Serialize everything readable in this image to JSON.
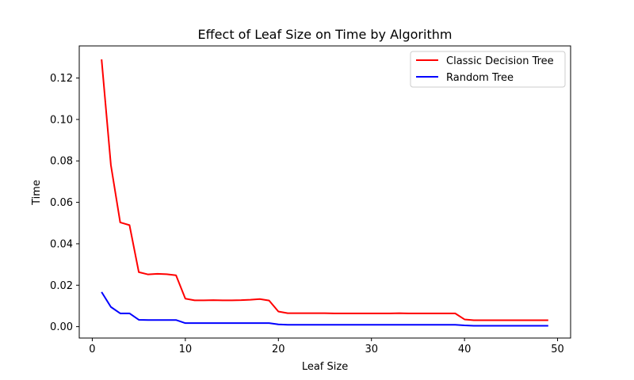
{
  "chart_data": {
    "type": "line",
    "title": "Effect of Leaf Size on Time by Algorithm",
    "xlabel": "Leaf Size",
    "ylabel": "Time",
    "xlim": [
      -1.4,
      51.4
    ],
    "ylim": [
      -0.0055,
      0.1355
    ],
    "x_ticks": [
      0,
      10,
      20,
      30,
      40,
      50
    ],
    "y_ticks": [
      0.0,
      0.02,
      0.04,
      0.06,
      0.08,
      0.1,
      0.12
    ],
    "x_tick_labels": [
      "0",
      "10",
      "20",
      "30",
      "40",
      "50"
    ],
    "y_tick_labels": [
      "0.00",
      "0.02",
      "0.04",
      "0.06",
      "0.08",
      "0.10",
      "0.12"
    ],
    "grid": false,
    "legend_position": "top-right",
    "x": [
      1,
      2,
      3,
      4,
      5,
      6,
      7,
      8,
      9,
      10,
      11,
      12,
      13,
      14,
      15,
      16,
      17,
      18,
      19,
      20,
      21,
      22,
      23,
      24,
      25,
      26,
      27,
      28,
      29,
      30,
      31,
      32,
      33,
      34,
      35,
      36,
      37,
      38,
      39,
      40,
      41,
      42,
      43,
      44,
      45,
      46,
      47,
      48,
      49
    ],
    "series": [
      {
        "name": "Classic Decision Tree",
        "color": "#ff0000",
        "values": [
          0.129,
          0.078,
          0.0503,
          0.049,
          0.0263,
          0.0252,
          0.0255,
          0.0253,
          0.0248,
          0.0135,
          0.0127,
          0.0127,
          0.0128,
          0.0127,
          0.0127,
          0.0128,
          0.013,
          0.0133,
          0.0126,
          0.0073,
          0.0065,
          0.0065,
          0.0065,
          0.0065,
          0.0065,
          0.0064,
          0.0064,
          0.0064,
          0.0064,
          0.0064,
          0.0064,
          0.0064,
          0.0065,
          0.0064,
          0.0064,
          0.0064,
          0.0064,
          0.0064,
          0.0064,
          0.0035,
          0.0031,
          0.0031,
          0.0031,
          0.0031,
          0.0031,
          0.0031,
          0.0031,
          0.0031,
          0.0031
        ]
      },
      {
        "name": "Random Tree",
        "color": "#0000ff",
        "values": [
          0.0167,
          0.0095,
          0.0064,
          0.0064,
          0.0033,
          0.0032,
          0.0032,
          0.0032,
          0.0032,
          0.0017,
          0.0017,
          0.0017,
          0.0017,
          0.0017,
          0.0017,
          0.0017,
          0.0017,
          0.0017,
          0.0017,
          0.0011,
          0.0009,
          0.0009,
          0.0009,
          0.0009,
          0.0009,
          0.0009,
          0.0009,
          0.0009,
          0.0009,
          0.0009,
          0.0009,
          0.0009,
          0.0009,
          0.0009,
          0.0009,
          0.0009,
          0.0009,
          0.0009,
          0.0009,
          0.0006,
          0.0004,
          0.0004,
          0.0004,
          0.0004,
          0.0004,
          0.0004,
          0.0004,
          0.0004,
          0.0004
        ]
      }
    ]
  }
}
